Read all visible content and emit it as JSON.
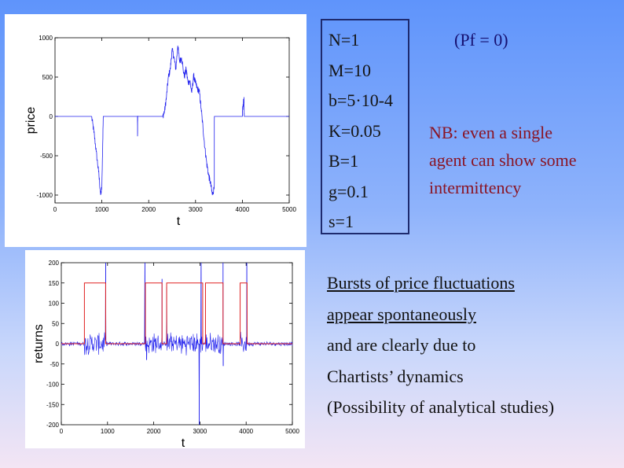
{
  "params": [
    "N=1",
    "M=10",
    "b=5·10-4",
    "K=0.05",
    "B=1",
    "g=0.1",
    "s=1"
  ],
  "pf_note": "(Pf = 0)",
  "nb_note": {
    "line1": "NB: even a single",
    "line2": "agent can show some",
    "line3": "intermittency"
  },
  "bursts": {
    "line1": "Bursts of price fluctuations",
    "line2": "appear spontaneously",
    "line3": "and are clearly due to",
    "line4": "Chartists’ dynamics",
    "line5": "(Possibility of analytical studies)"
  },
  "colors": {
    "signal": "#2222ee",
    "chartist_regime": "#e02020",
    "text_dark_blue": "#161070",
    "text_red": "#8a1525"
  },
  "chart_data": [
    {
      "type": "line",
      "title": "",
      "xlabel": "t",
      "ylabel": "price",
      "xlim": [
        0,
        5000
      ],
      "ylim": [
        -1100,
        1000
      ],
      "x_ticks": [
        "0",
        "1000",
        "2000",
        "3000",
        "4000",
        "5000"
      ],
      "y_ticks": [
        "-1000",
        "-500",
        "0",
        "500",
        "1000"
      ],
      "grid": false,
      "series": [
        {
          "x": [
            0,
            780,
            830,
            880,
            930,
            975,
            1000,
            1030,
            1760,
            1762,
            1765,
            1800,
            2300,
            2340,
            2380,
            2420,
            2460,
            2500,
            2540,
            2580,
            2620,
            2660,
            2700,
            2760,
            2800,
            2840,
            2880,
            2920,
            2960,
            3000,
            3040,
            3080,
            3120,
            3160,
            3200,
            3240,
            3280,
            3320,
            3360,
            3400,
            3402,
            3420,
            3480,
            3560,
            3600,
            4000,
            4005,
            4035,
            4040,
            4070,
            5000
          ],
          "y": [
            0,
            0,
            -200,
            -450,
            -700,
            -1000,
            -900,
            0,
            0,
            -230,
            0,
            0,
            0,
            70,
            250,
            500,
            600,
            850,
            750,
            600,
            900,
            700,
            750,
            500,
            600,
            430,
            450,
            300,
            520,
            420,
            350,
            320,
            100,
            -150,
            -400,
            -600,
            -750,
            -850,
            -1000,
            -900,
            0,
            0,
            0,
            0,
            0,
            0,
            100,
            230,
            0,
            0,
            0
          ]
        }
      ]
    },
    {
      "type": "line",
      "title": "",
      "xlabel": "t",
      "ylabel": "returns",
      "xlim": [
        0,
        5000
      ],
      "ylim": [
        -200,
        200
      ],
      "x_ticks": [
        "0",
        "1000",
        "2000",
        "3000",
        "4000",
        "5000"
      ],
      "y_ticks": [
        "-200",
        "-150",
        "-100",
        "-50",
        "0",
        "50",
        "100",
        "150",
        "200"
      ],
      "grid": false,
      "chartist_intervals": [
        [
          500,
          960
        ],
        [
          1820,
          2180
        ],
        [
          2280,
          3060
        ],
        [
          3120,
          3500
        ],
        [
          3870,
          4020
        ]
      ],
      "chartist_level": 150,
      "noise_amplitude": {
        "calm": 6,
        "burst": 30
      },
      "spikes": [
        {
          "x": 960,
          "y": 205
        },
        {
          "x": 1810,
          "y": 205
        },
        {
          "x": 1845,
          "y": -40
        },
        {
          "x": 2180,
          "y": 160
        },
        {
          "x": 2280,
          "y": 140
        },
        {
          "x": 2985,
          "y": -205
        },
        {
          "x": 3025,
          "y": 205
        },
        {
          "x": 3500,
          "y": 200
        },
        {
          "x": 3505,
          "y": -55
        },
        {
          "x": 4015,
          "y": 200
        }
      ]
    }
  ]
}
